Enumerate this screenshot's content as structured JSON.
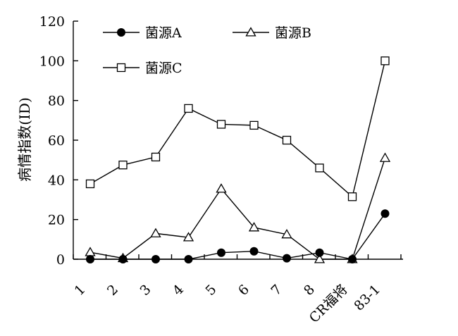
{
  "chart_data": {
    "type": "line",
    "title": "",
    "xlabel": "",
    "ylabel": "病情指数(ID)",
    "ylim": [
      0,
      120
    ],
    "yticks": [
      0,
      20,
      40,
      60,
      80,
      100,
      120
    ],
    "categories": [
      "1",
      "2",
      "3",
      "4",
      "5",
      "6",
      "7",
      "8",
      "CR福将",
      "83-1"
    ],
    "legend_position": "top-left",
    "grid": false,
    "series": [
      {
        "name": "菌源A",
        "marker": "circle-filled",
        "values": [
          0,
          0,
          0,
          0,
          3.3,
          4,
          0.5,
          3.3,
          0,
          23
        ]
      },
      {
        "name": "菌源B",
        "marker": "triangle-open",
        "values": [
          3.5,
          0.5,
          13,
          11,
          35.5,
          16,
          12.5,
          0,
          0,
          51
        ]
      },
      {
        "name": "菌源C",
        "marker": "square-open",
        "values": [
          38,
          47.5,
          51.5,
          76,
          68,
          67.5,
          60,
          46,
          31.5,
          100
        ]
      }
    ]
  }
}
